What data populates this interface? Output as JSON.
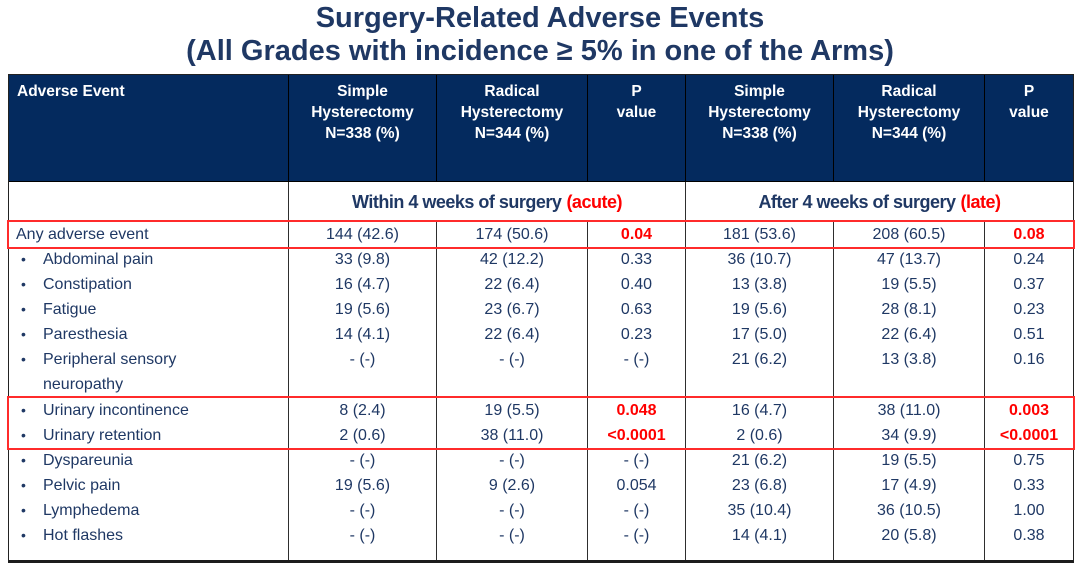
{
  "title": {
    "line1": "Surgery-Related Adverse Events",
    "line2": "(All Grades with incidence ≥ 5% in one of the Arms)"
  },
  "table": {
    "adverse_event_header": "Adverse Event",
    "bullet_glyph": "•",
    "arm_headers": [
      {
        "lines": [
          "Simple",
          "Hysterectomy",
          "N=338 (%)"
        ]
      },
      {
        "lines": [
          "Radical",
          "Hysterectomy",
          "N=344 (%)"
        ]
      },
      {
        "lines": [
          "P",
          "value"
        ]
      },
      {
        "lines": [
          "Simple",
          "Hysterectomy",
          "N=338 (%)"
        ]
      },
      {
        "lines": [
          "Radical",
          "Hysterectomy",
          "N=344 (%)"
        ]
      },
      {
        "lines": [
          "P",
          "value"
        ]
      }
    ],
    "period_headers": [
      {
        "label": "Within 4 weeks of surgery",
        "tag": "(acute)"
      },
      {
        "label": "After 4 weeks of surgery",
        "tag": "(late)"
      }
    ],
    "rows": [
      {
        "id": "any-adverse-event",
        "label": "Any adverse event",
        "bullet": false,
        "box": "any-adverse-event",
        "values": [
          "144 (42.6)",
          "174 (50.6)",
          "0.04",
          "181 (53.6)",
          "208 (60.5)",
          "0.08"
        ],
        "red_indices": [
          2,
          5
        ]
      },
      {
        "id": "abdominal-pain",
        "label": "Abdominal pain",
        "bullet": true,
        "values": [
          "33 (9.8)",
          "42 (12.2)",
          "0.33",
          "36 (10.7)",
          "47 (13.7)",
          "0.24"
        ]
      },
      {
        "id": "constipation",
        "label": "Constipation",
        "bullet": true,
        "values": [
          "16 (4.7)",
          "22 (6.4)",
          "0.40",
          "13 (3.8)",
          "19 (5.5)",
          "0.37"
        ]
      },
      {
        "id": "fatigue",
        "label": "Fatigue",
        "bullet": true,
        "values": [
          "19 (5.6)",
          "23 (6.7)",
          "0.63",
          "19 (5.6)",
          "28 (8.1)",
          "0.23"
        ]
      },
      {
        "id": "paresthesia",
        "label": "Paresthesia",
        "bullet": true,
        "values": [
          "14 (4.1)",
          "22 (6.4)",
          "0.23",
          "17 (5.0)",
          "22 (6.4)",
          "0.51"
        ]
      },
      {
        "id": "peripheral-sensory-neuropathy",
        "label": "Peripheral sensory neuropathy",
        "bullet": true,
        "wrap": true,
        "values": [
          "- (-)",
          "- (-)",
          "- (-)",
          "21 (6.2)",
          "13 (3.8)",
          "0.16"
        ]
      },
      {
        "id": "urinary-incontinence",
        "label": "Urinary incontinence",
        "bullet": true,
        "box": "urinary",
        "values": [
          "8 (2.4)",
          "19 (5.5)",
          "0.048",
          "16 (4.7)",
          "38 (11.0)",
          "0.003"
        ],
        "red_indices": [
          2,
          5
        ]
      },
      {
        "id": "urinary-retention",
        "label": "Urinary retention",
        "bullet": true,
        "box": "urinary",
        "values": [
          "2 (0.6)",
          "38 (11.0)",
          "<0.0001",
          "2 (0.6)",
          "34 (9.9)",
          "<0.0001"
        ],
        "red_indices": [
          2,
          5
        ]
      },
      {
        "id": "dyspareunia",
        "label": "Dyspareunia",
        "bullet": true,
        "values": [
          "- (-)",
          "- (-)",
          "- (-)",
          "21 (6.2)",
          "19 (5.5)",
          "0.75"
        ]
      },
      {
        "id": "pelvic-pain",
        "label": "Pelvic pain",
        "bullet": true,
        "values": [
          "19 (5.6)",
          "9 (2.6)",
          "0.054",
          "23 (6.8)",
          "17 (4.9)",
          "0.33"
        ]
      },
      {
        "id": "lymphedema",
        "label": "Lymphedema",
        "bullet": true,
        "values": [
          "- (-)",
          "- (-)",
          "- (-)",
          "35 (10.4)",
          "36 (10.5)",
          "1.00"
        ]
      },
      {
        "id": "hot-flashes",
        "label": "Hot flashes",
        "bullet": true,
        "values": [
          "- (-)",
          "- (-)",
          "- (-)",
          "14 (4.1)",
          "20 (5.8)",
          "0.38"
        ]
      }
    ]
  },
  "colors": {
    "header_bg": "#042a5e",
    "title_text": "#1f3864",
    "body_text": "#1f3864",
    "accent_red": "#ff0000",
    "grid_line": "#2e2e2e",
    "highlight_box": "#ff2b2b"
  }
}
